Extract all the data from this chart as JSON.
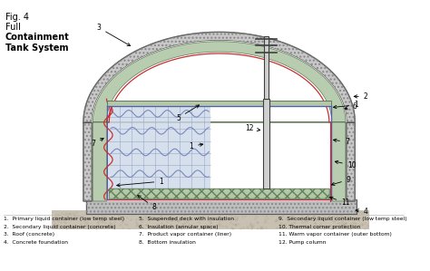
{
  "title": [
    "Fig. 4",
    "Full",
    "Containment",
    "Tank System"
  ],
  "title_bold": [
    false,
    false,
    true,
    true
  ],
  "legend": [
    [
      "1.  Primary liquid container (low temp steel)",
      "5.  Suspended deck with insulation",
      "9.  Secondary liquid container (low temp steel)"
    ],
    [
      "2.  Secondary liquid container (concrete)",
      "6.  Insulation (annular space)",
      "10. Thermal corner protection"
    ],
    [
      "3.  Roof (concrete)",
      "7.  Product vapor container (liner)",
      "11. Warm vapor container (outer bottom)"
    ],
    [
      "4.  Concrete foundation",
      "8.  Bottom insulation",
      "12. Pump column"
    ]
  ],
  "colors": {
    "concrete_fill": "#c8c8c8",
    "concrete_edge": "#505050",
    "green_insulation": "#b8ccb0",
    "green_deck": "#b4c8a8",
    "green_bottom": "#b4c8a4",
    "blue_liquid": "#ccd8e8",
    "blue_line": "#5060b0",
    "red_line": "#c83030",
    "pump_fill": "#d0d0d0",
    "dark": "#404040",
    "gray": "#909090",
    "foundation": "#bebebe",
    "ground": "#c8c0b0",
    "white": "#ffffff",
    "wavy_blue": "#7080b8",
    "grid_blue": "#9aa8c8",
    "light_green": "#c8dcc0"
  }
}
